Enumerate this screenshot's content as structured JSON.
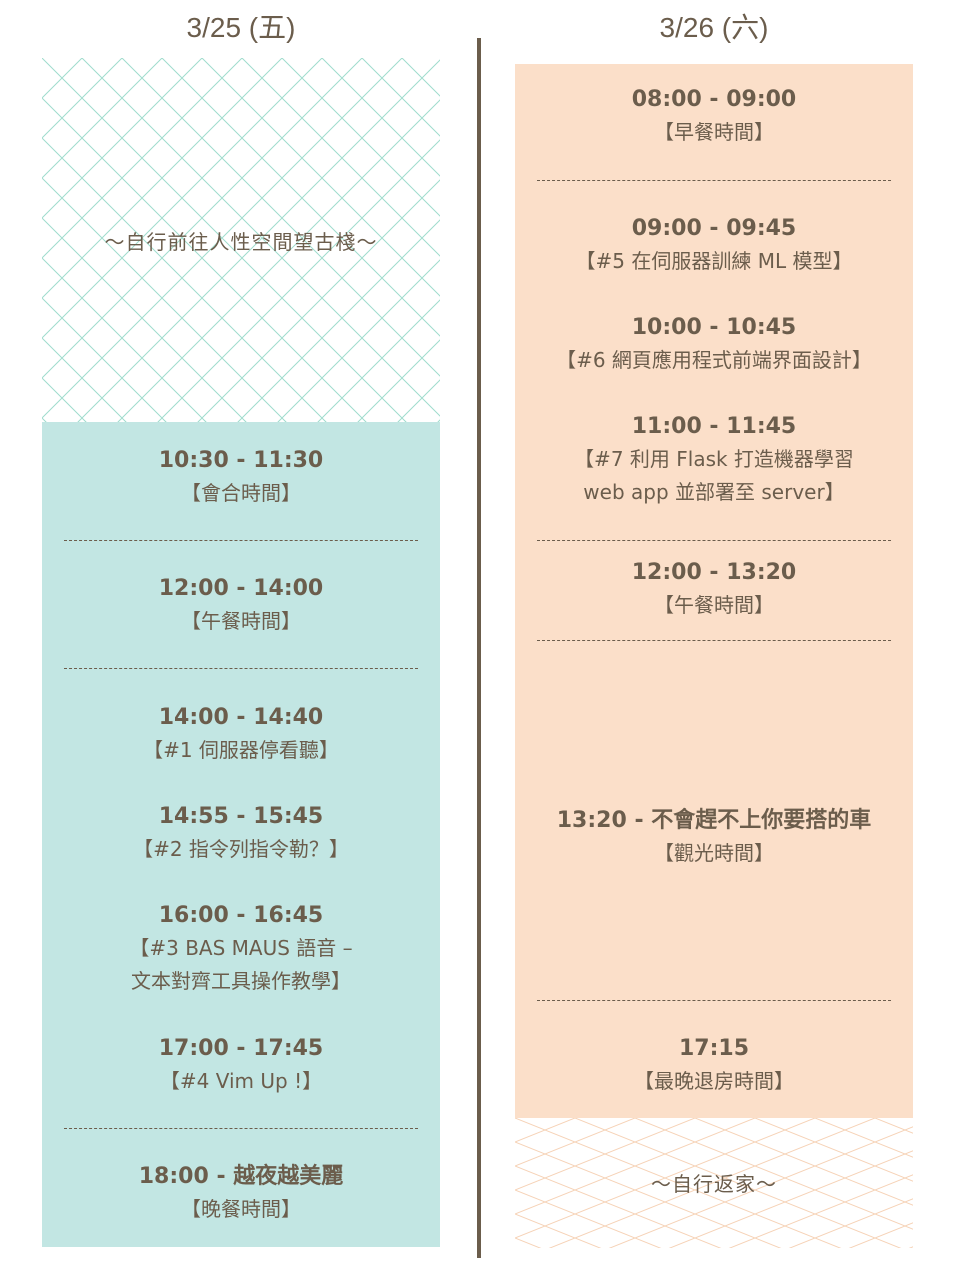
{
  "day1": {
    "header": "3/25 (五)",
    "intro": "～自行前往人性空間望古棧～",
    "items": [
      {
        "time": "10:30 - 11:30",
        "title": "【會合時間】"
      },
      {
        "time": "12:00 - 14:00",
        "title": "【午餐時間】"
      },
      {
        "time": "14:00 - 14:40",
        "title": "【#1 伺服器停看聽】"
      },
      {
        "time": "14:55 - 15:45",
        "title": "【#2 指令列指令勒？】"
      },
      {
        "time": "16:00 - 16:45",
        "title": "【#3 BAS MAUS 語音 –",
        "title2": "文本對齊工具操作教學】"
      },
      {
        "time": "17:00 - 17:45",
        "title": "【#4 Vim Up !】"
      },
      {
        "time": "18:00 - 越夜越美麗",
        "title": "【晚餐時間】"
      }
    ]
  },
  "day2": {
    "header": "3/26 (六)",
    "outro": "～自行返家～",
    "items": [
      {
        "time": "08:00 - 09:00",
        "title": "【早餐時間】"
      },
      {
        "time": "09:00 - 09:45",
        "title": "【#5 在伺服器訓練 ML 模型】"
      },
      {
        "time": "10:00 - 10:45",
        "title": "【#6 網頁應用程式前端界面設計】"
      },
      {
        "time": "11:00 - 11:45",
        "title": "【#7 利用 Flask 打造機器學習",
        "title2": "web app 並部署至 server】"
      },
      {
        "time": "12:00 - 13:20",
        "title": "【午餐時間】"
      },
      {
        "time": "13:20 - 不會趕不上你要搭的車",
        "title": "【觀光時間】"
      },
      {
        "time": "17:15",
        "title": "【最晚退房時間】"
      }
    ]
  },
  "colors": {
    "day1_panel": "#c2e6e3",
    "day2_panel": "#fbdfc9",
    "day1_pattern": "#9fdccd",
    "day2_pattern": "#f6d2b6",
    "text": "#6b5d4c"
  }
}
